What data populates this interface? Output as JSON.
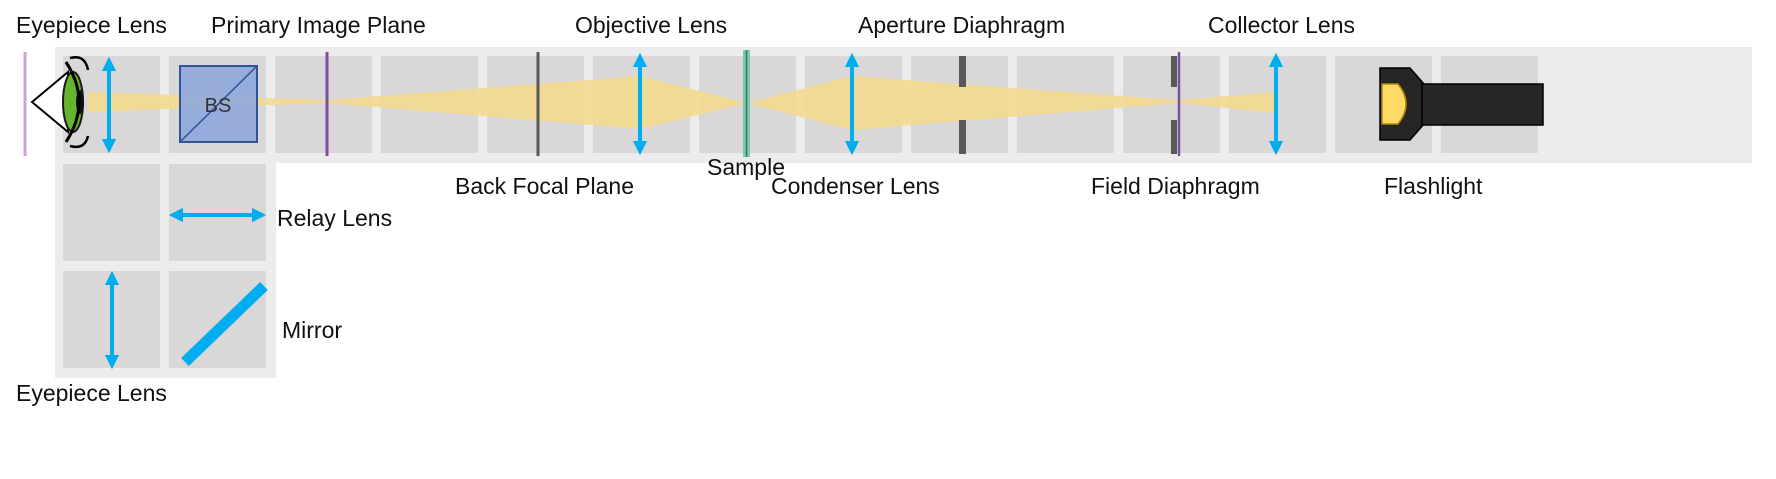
{
  "labels": {
    "eyepiece_lens_top": "Eyepiece Lens",
    "primary_image_plane": "Primary Image Plane",
    "objective_lens": "Objective Lens",
    "aperture_diaphragm": "Aperture Diaphragm",
    "collector_lens": "Collector Lens",
    "sample": "Sample",
    "back_focal_plane": "Back Focal Plane",
    "condenser_lens": "Condenser Lens",
    "field_diaphragm": "Field Diaphragm",
    "flashlight": "Flashlight",
    "relay_lens": "Relay Lens",
    "mirror": "Mirror",
    "eyepiece_lens_bottom": "Eyepiece Lens",
    "beam_splitter": "BS"
  },
  "colors": {
    "background": "#ffffff",
    "rail": "#ececec",
    "tile": "#d9d7d8",
    "lens_arrow": "#00aeef",
    "light_beam": "#f5d98b",
    "beam_splitter": "#8ea9db",
    "plane_marker": "#7b4ea0",
    "diaphragm": "#595959",
    "eye_iris": "#66b32e",
    "flashlight_body": "#262626",
    "flashlight_bulb": "#ffd966"
  }
}
